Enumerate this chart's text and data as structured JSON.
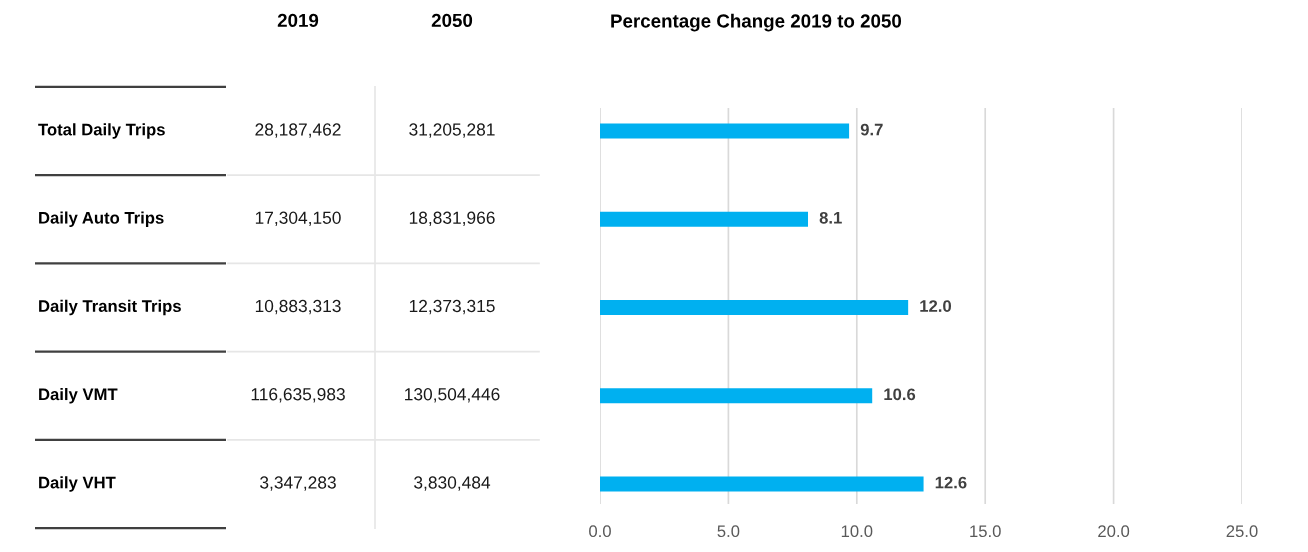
{
  "chart_data": [
    {
      "type": "other",
      "categories": [
        "Total Daily Trips",
        "Daily Auto Trips",
        "Daily Transit Trips",
        "Daily VMT",
        "Daily VHT"
      ],
      "series": [
        {
          "name": "2019",
          "values": [
            28187462,
            17304150,
            10883313,
            116635983,
            3347283
          ],
          "value_labels": [
            "28,187,462",
            "17,304,150",
            "10,883,313",
            "116,635,983",
            "3,347,283"
          ]
        },
        {
          "name": "2050",
          "values": [
            31205281,
            18831966,
            12373315,
            130504446,
            3830484
          ],
          "value_labels": [
            "31,205,281",
            "18,831,966",
            "12,373,315",
            "130,504,446",
            "3,830,484"
          ]
        }
      ]
    },
    {
      "type": "bar",
      "orientation": "horizontal",
      "title": "Percentage Change 2019 to 2050",
      "categories": [
        null,
        null,
        null,
        null,
        null
      ],
      "values": [
        9.7,
        8.1,
        12.0,
        10.6,
        12.6
      ],
      "value_labels": [
        "9.7",
        "8.1",
        "12.0",
        "10.6",
        "12.6"
      ],
      "color": "#00b0f0",
      "xlim": [
        0,
        25
      ],
      "xticks": [
        {
          "value": 0,
          "label": "0.0"
        },
        {
          "value": 5,
          "label": "5.0"
        },
        {
          "value": 10,
          "label": "10.0"
        },
        {
          "value": 15,
          "label": "15.0"
        },
        {
          "value": 20,
          "label": "20.0"
        },
        {
          "value": 25,
          "label": "25.0"
        }
      ],
      "grid": "x"
    }
  ]
}
